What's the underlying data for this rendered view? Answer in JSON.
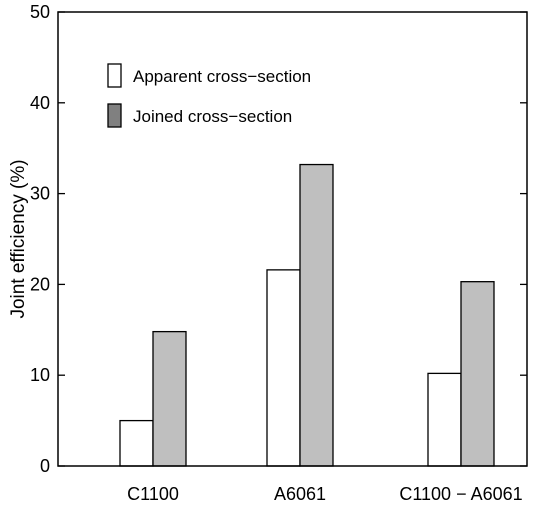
{
  "chart_data": {
    "type": "bar",
    "title": "",
    "xlabel": "",
    "ylabel": "Joint efficiency (%)",
    "ylim": [
      0,
      50
    ],
    "yticks": [
      0,
      10,
      20,
      30,
      40,
      50
    ],
    "categories": [
      "C1100",
      "A6061",
      "C1100 − A6061"
    ],
    "series": [
      {
        "name": "Apparent cross−section",
        "values": [
          5.0,
          21.6,
          10.2
        ],
        "color": "#ffffff"
      },
      {
        "name": "Joined cross−section",
        "values": [
          14.8,
          33.2,
          20.3
        ],
        "color": "#bfbfbf"
      }
    ],
    "grid": false,
    "legend_position": "top-left"
  }
}
